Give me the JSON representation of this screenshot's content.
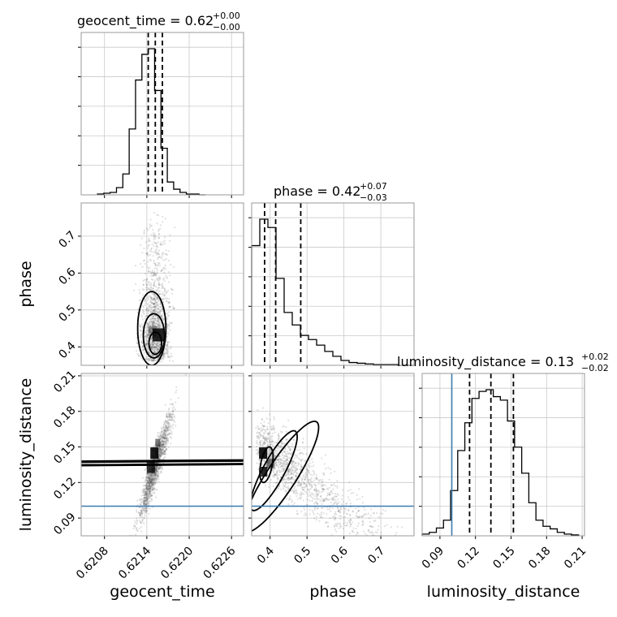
{
  "chart_data": {
    "type": "corner",
    "parameters": [
      "geocent_time",
      "phase",
      "luminosity_distance"
    ],
    "axis_labels": {
      "x": [
        "geocent_time",
        "phase",
        "luminosity_distance"
      ],
      "y": [
        "phase",
        "luminosity_distance"
      ]
    },
    "ranges": {
      "geocent_time": [
        0.62047,
        0.62277
      ],
      "phase": [
        0.35,
        0.79
      ],
      "luminosity_distance": [
        0.075,
        0.212
      ]
    },
    "ticks": {
      "geocent_time": [
        "0.6208",
        "0.6214",
        "0.6220",
        "0.6226"
      ],
      "phase": [
        "0.4",
        "0.5",
        "0.6",
        "0.7"
      ],
      "luminosity_distance": [
        "0.09",
        "0.12",
        "0.15",
        "0.18",
        "0.21"
      ]
    },
    "tick_values": {
      "geocent_time": [
        0.6208,
        0.6214,
        0.622,
        0.6226
      ],
      "phase": [
        0.4,
        0.5,
        0.6,
        0.7
      ],
      "luminosity_distance": [
        0.09,
        0.12,
        0.15,
        0.18,
        0.21
      ]
    },
    "titles": [
      {
        "param": "geocent_time",
        "label": "geocent_time = 0.62",
        "plus": "+0.00",
        "minus": "−0.00"
      },
      {
        "param": "phase",
        "label": "phase = 0.42",
        "plus": "+0.07",
        "minus": "−0.03"
      },
      {
        "param": "luminosity_distance",
        "label": "luminosity_distance = 0.13",
        "plus": "+0.02",
        "minus": "−0.02"
      }
    ],
    "quantiles": {
      "geocent_time": [
        0.62142,
        0.62152,
        0.62162
      ],
      "phase": [
        0.385,
        0.415,
        0.483
      ],
      "luminosity_distance": [
        0.115,
        0.133,
        0.152
      ]
    },
    "truths": {
      "luminosity_distance": 0.1
    },
    "histograms": {
      "geocent_time": {
        "edges": [
          0.6207,
          0.62079,
          0.62088,
          0.62097,
          0.62106,
          0.62115,
          0.62124,
          0.62133,
          0.62142,
          0.62151,
          0.6216,
          0.62169,
          0.62178,
          0.62187,
          0.62196,
          0.62205,
          0.62214,
          0.62223
        ],
        "counts": [
          1,
          2,
          3,
          9,
          26,
          82,
          143,
          175,
          182,
          130,
          58,
          16,
          7,
          3,
          1,
          1,
          0
        ]
      },
      "phase": {
        "edges": [
          0.35,
          0.372,
          0.394,
          0.416,
          0.438,
          0.46,
          0.482,
          0.504,
          0.526,
          0.548,
          0.57,
          0.592,
          0.614,
          0.636,
          0.658,
          0.68,
          0.702,
          0.724,
          0.746,
          0.768,
          0.79
        ],
        "counts": [
          172,
          210,
          198,
          125,
          76,
          58,
          43,
          37,
          29,
          20,
          13,
          7,
          4,
          3,
          2,
          1,
          1,
          1,
          0,
          0
        ]
      },
      "luminosity_distance": {
        "edges": [
          0.075,
          0.081,
          0.087,
          0.093,
          0.099,
          0.105,
          0.111,
          0.117,
          0.123,
          0.129,
          0.135,
          0.141,
          0.147,
          0.153,
          0.159,
          0.165,
          0.171,
          0.177,
          0.183,
          0.189,
          0.195,
          0.201,
          0.207
        ],
        "counts": [
          2,
          4,
          9,
          18,
          52,
          98,
          130,
          158,
          166,
          168,
          160,
          156,
          132,
          102,
          72,
          38,
          18,
          11,
          8,
          4,
          2,
          1
        ]
      }
    }
  }
}
